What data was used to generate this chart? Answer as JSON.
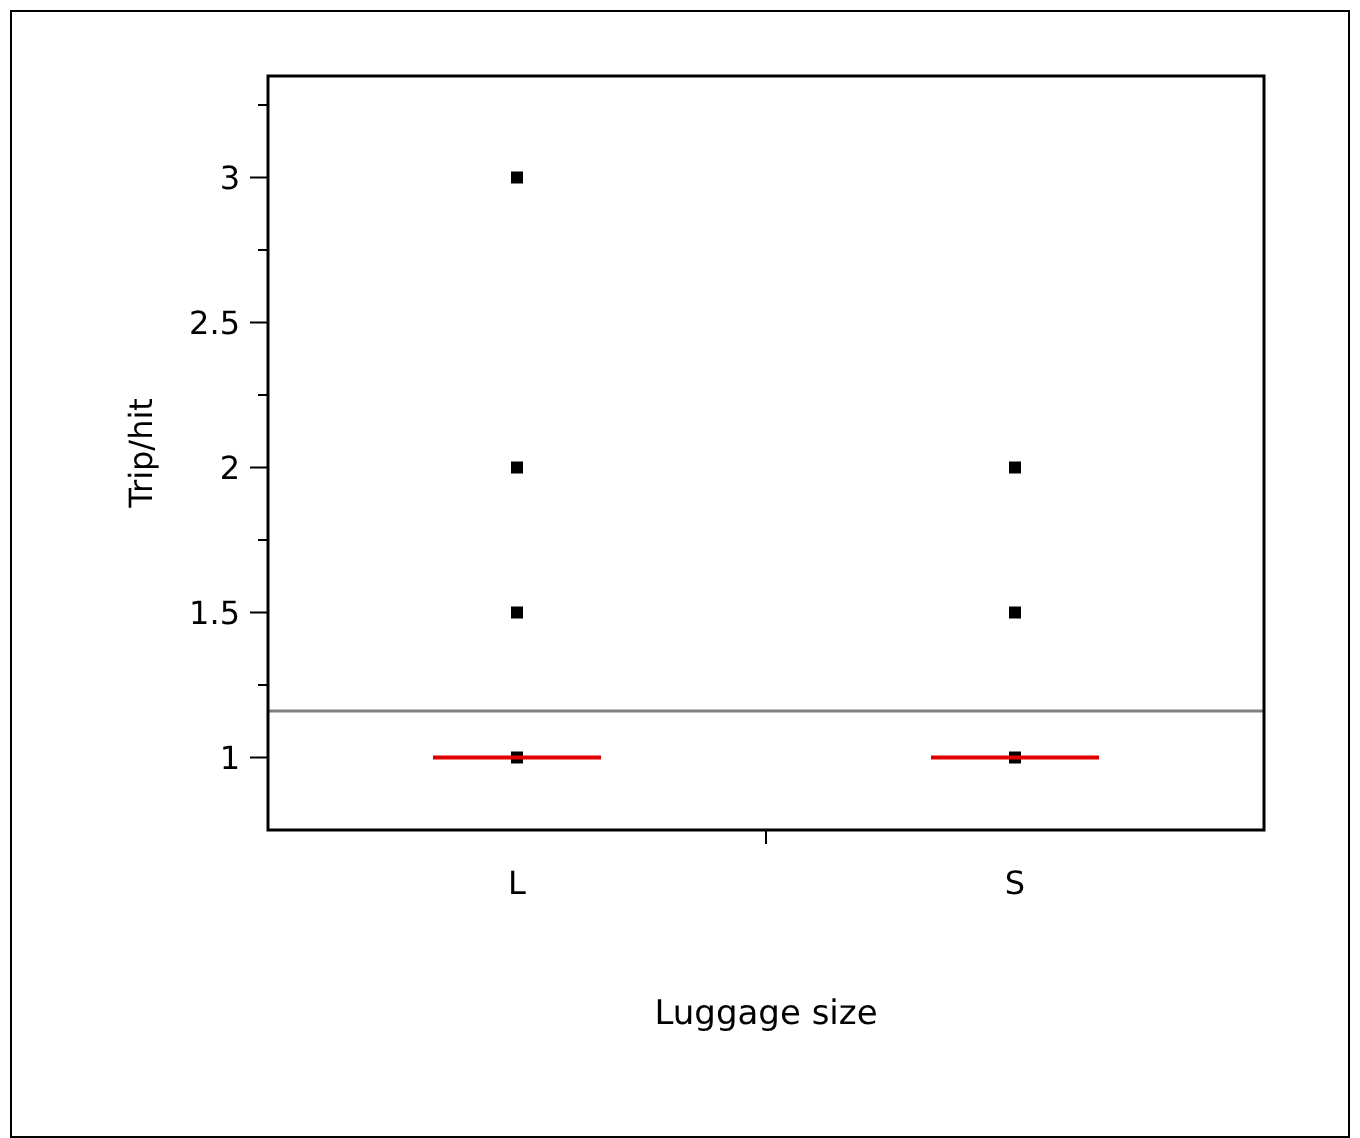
{
  "chart_data": {
    "type": "scatter",
    "xlabel": "Luggage size",
    "ylabel": "Trip/hit",
    "categories": [
      "L",
      "S"
    ],
    "ylim": [
      0.75,
      3.35
    ],
    "yticks": [
      1,
      {
        "value": 1.25,
        "label": null
      },
      1.5,
      {
        "value": 1.75,
        "label": null
      },
      2,
      {
        "value": 2.25,
        "label": null
      },
      2.5,
      {
        "value": 2.75,
        "label": null
      },
      3,
      {
        "value": 3.25,
        "label": null
      }
    ],
    "series": [
      {
        "color": "#000000",
        "marker": "square",
        "x": [
          "L",
          "L",
          "L",
          "L",
          "S",
          "S",
          "S"
        ],
        "values": [
          3,
          2,
          1.5,
          1,
          2,
          1.5,
          1
        ]
      },
      {
        "type": "box",
        "color": "#e00000",
        "boxes": [
          {
            "low": 1,
            "q1": 1,
            "median": 1,
            "q3": 1,
            "high": 1
          },
          {
            "low": 1,
            "q1": 1,
            "median": 1,
            "q3": 1,
            "high": 1
          }
        ]
      }
    ],
    "ref_lines": [
      {
        "axis": "y",
        "value": 1.16,
        "color": "#808080"
      }
    ],
    "grid": false
  }
}
